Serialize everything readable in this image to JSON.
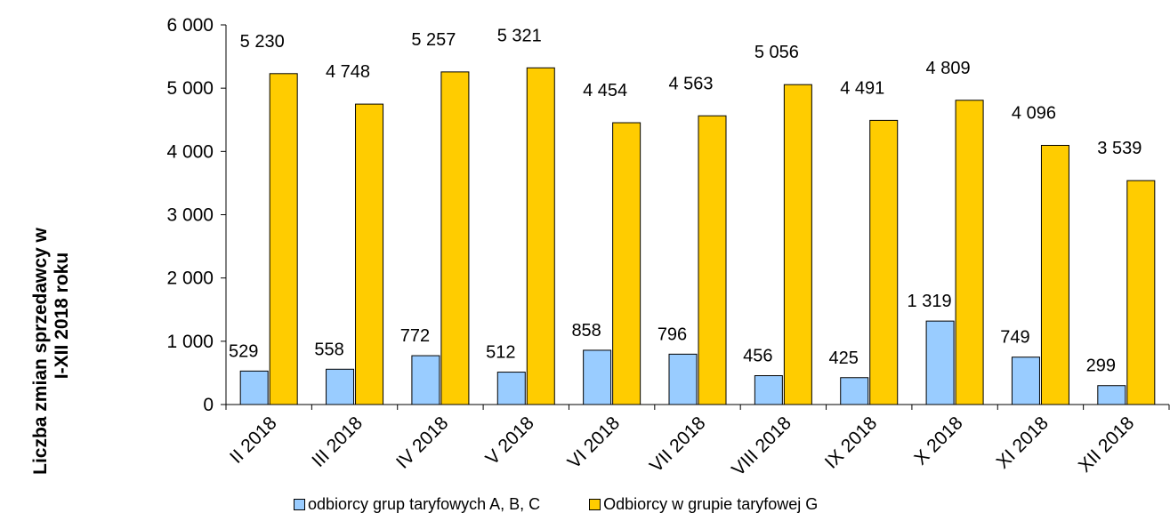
{
  "chart_data": {
    "type": "bar",
    "ylabel_line1": "Liczba zmian sprzedawcy w",
    "ylabel_line2": "I-XII 2018 roku",
    "ylim": [
      0,
      6000
    ],
    "yticks": [
      0,
      1000,
      2000,
      3000,
      4000,
      5000,
      6000
    ],
    "ytick_labels": [
      "0",
      "1 000",
      "2 000",
      "3 000",
      "4 000",
      "5 000",
      "6 000"
    ],
    "categories": [
      "II 2018",
      "III 2018",
      "IV 2018",
      "V 2018",
      "VI 2018",
      "VII 2018",
      "VIII 2018",
      "IX 2018",
      "X 2018",
      "XI 2018",
      "XII 2018"
    ],
    "series": [
      {
        "name": "odbiorcy grup taryfowych A, B, C",
        "color": "#99CCFF",
        "values": [
          529,
          558,
          772,
          512,
          858,
          796,
          456,
          425,
          1319,
          749,
          299
        ],
        "labels": [
          "529",
          "558",
          "772",
          "512",
          "858",
          "796",
          "456",
          "425",
          "1 319",
          "749",
          "299"
        ]
      },
      {
        "name": "Odbiorcy w grupie taryfowej G",
        "color": "#FFCC00",
        "values": [
          5230,
          4748,
          5257,
          5321,
          4454,
          4563,
          5056,
          4491,
          4809,
          4096,
          3539
        ],
        "labels": [
          "5 230",
          "4 748",
          "5 257",
          "5 321",
          "4 454",
          "4 563",
          "5 056",
          "4 491",
          "4 809",
          "4 096",
          "3 539"
        ]
      }
    ],
    "grid": false,
    "legend_position": "bottom"
  }
}
